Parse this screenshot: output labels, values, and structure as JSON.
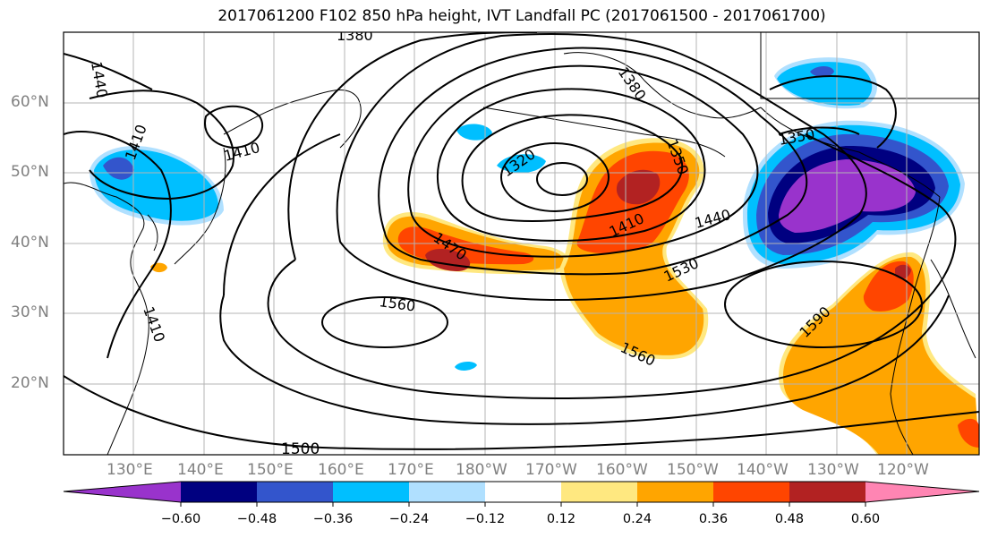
{
  "title": "2017061200 F102 850 hPa height, IVT Landfall PC (2017061500 - 2017061700)",
  "lat_labels": [
    "60°N",
    "50°N",
    "40°N",
    "30°N",
    "20°N"
  ],
  "lon_labels": [
    "130°E",
    "140°E",
    "150°E",
    "160°E",
    "170°E",
    "180°W",
    "170°W",
    "160°W",
    "150°W",
    "140°W",
    "130°W",
    "120°W"
  ],
  "contour_labels": [
    "1380",
    "1440",
    "1410",
    "1410",
    "1380",
    "1320",
    "1350",
    "1470",
    "1410",
    "1440",
    "1530",
    "1350",
    "1560",
    "1410",
    "1590",
    "1560",
    "1500"
  ],
  "colorbar": {
    "colors": [
      "#9933cc",
      "#000080",
      "#3355cc",
      "#00bfff",
      "#b0e0ff",
      "#ffffff",
      "#ffe880",
      "#ffa500",
      "#ff4500",
      "#b22222",
      "#ff85b3"
    ],
    "labels": [
      "−0.60",
      "−0.48",
      "−0.36",
      "−0.24",
      "−0.12",
      "0.12",
      "0.24",
      "0.36",
      "0.48",
      "0.60"
    ]
  }
}
